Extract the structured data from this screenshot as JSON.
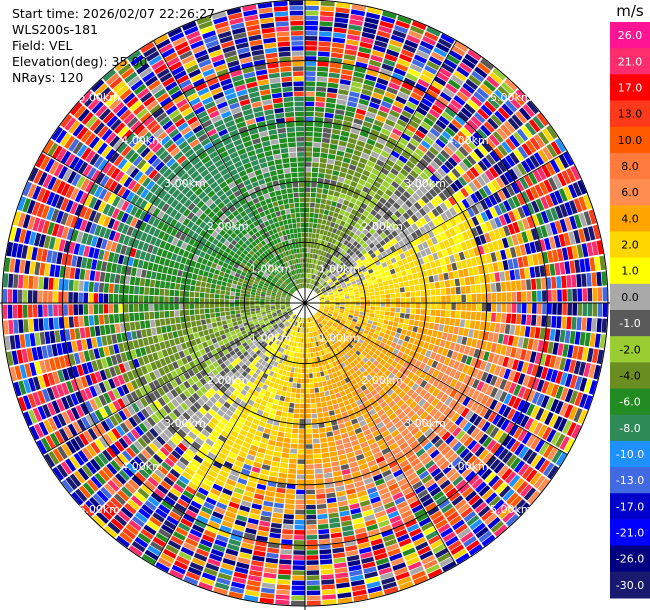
{
  "header": {
    "start_time": "Start time: 2026/02/07 22:26:27",
    "instrument": "WLS200s-181",
    "field": "Field: VEL",
    "elevation": "Elevation(deg): 35.00",
    "nrays": "NRays: 120"
  },
  "chart_data": {
    "type": "heatmap",
    "projection": "polar-ppi",
    "field": "VEL",
    "units": "m/s",
    "n_rays": 120,
    "range_rings_km": [
      1,
      2,
      3,
      4,
      5
    ],
    "ring_labels": [
      "1.00km",
      "2.00km",
      "3.00km",
      "4.00km",
      "5.00km"
    ],
    "max_range_km": 5.0,
    "crosshair": true,
    "colorbar": {
      "label": "m/s",
      "ticks": [
        "26.0",
        "21.0",
        "17.0",
        "13.0",
        "10.0",
        "8.0",
        "6.0",
        "4.0",
        "2.0",
        "1.0",
        "0.0",
        "-1.0",
        "-2.0",
        "-4.0",
        "-6.0",
        "-8.0",
        "-10.0",
        "-13.0",
        "-17.0",
        "-21.0",
        "-26.0",
        "-30.0"
      ],
      "colors": [
        "#ff1493",
        "#ff2d6e",
        "#ff0000",
        "#ff3a1a",
        "#ff5a00",
        "#ff7a3c",
        "#ff8c50",
        "#ffa500",
        "#ffd700",
        "#ffff00",
        "#a9a9a9",
        "#5a5a5a",
        "#9acd32",
        "#6b8e23",
        "#228b22",
        "#2e8b57",
        "#1e90ff",
        "#4169e1",
        "#0000cd",
        "#0000ff",
        "#000080",
        "#191970"
      ]
    }
  }
}
